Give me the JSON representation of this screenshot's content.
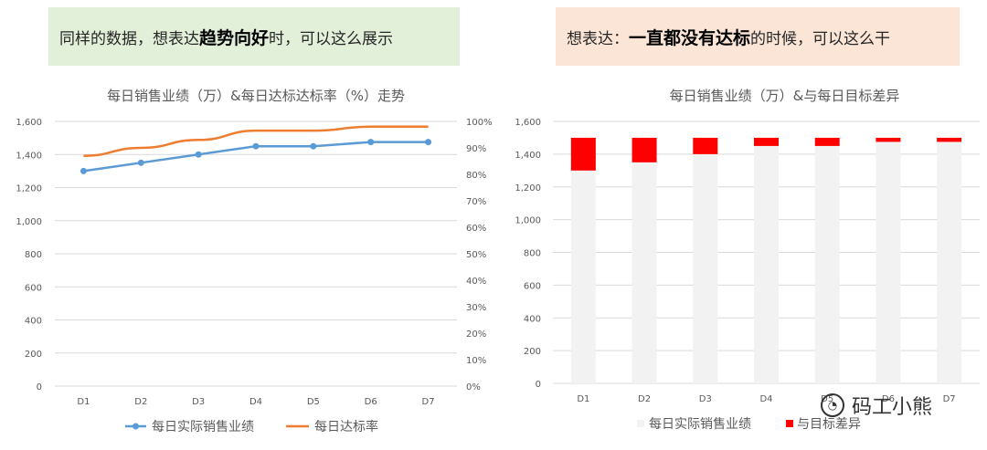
{
  "banners": {
    "left": {
      "prefix": "同样的数据，想表达",
      "emphasis": "趋势向好",
      "suffix": "时，可以这么展示"
    },
    "right": {
      "prefix": "想表达：",
      "emphasis": "一直都没有达标",
      "suffix": "的时候，可以这么干"
    }
  },
  "colors": {
    "blue": "#5b9bd5",
    "orange": "#ed7d31",
    "red": "#ff0000",
    "lightgray": "#f2f2f2",
    "grid": "#d9d9d9"
  },
  "watermark": {
    "text": "码工小熊",
    "icon": "wechat-icon"
  },
  "chart_data": [
    {
      "type": "line",
      "title": "每日销售业绩（万）&每日达标达标率（%）走势",
      "categories": [
        "D1",
        "D2",
        "D3",
        "D4",
        "D5",
        "D6",
        "D7"
      ],
      "series": [
        {
          "name": "每日实际销售业绩",
          "axis": "left",
          "values": [
            1300,
            1350,
            1400,
            1450,
            1450,
            1475,
            1475
          ]
        },
        {
          "name": "每日达标率",
          "axis": "right",
          "values": [
            87,
            90,
            93,
            96.5,
            96.5,
            98,
            98
          ]
        }
      ],
      "ylim": [
        0,
        1600
      ],
      "y_ticks": [
        "0",
        "200",
        "400",
        "600",
        "800",
        "1,000",
        "1,200",
        "1,400",
        "1,600"
      ],
      "y2lim": [
        0,
        100
      ],
      "y2_ticks": [
        "0%",
        "10%",
        "20%",
        "30%",
        "40%",
        "50%",
        "60%",
        "70%",
        "80%",
        "90%",
        "100%"
      ],
      "grid": true,
      "legend": "bottom"
    },
    {
      "type": "bar",
      "stacked": true,
      "title": "每日销售业绩（万）&与每日目标差异",
      "categories": [
        "D1",
        "D2",
        "D3",
        "D4",
        "D5",
        "D6",
        "D7"
      ],
      "series": [
        {
          "name": "每日实际销售业绩",
          "values": [
            1300,
            1350,
            1400,
            1450,
            1450,
            1475,
            1475
          ]
        },
        {
          "name": "与目标差异",
          "values": [
            200,
            150,
            100,
            50,
            50,
            25,
            25
          ]
        }
      ],
      "ylim": [
        0,
        1600
      ],
      "y_ticks": [
        "0",
        "200",
        "400",
        "600",
        "800",
        "1,000",
        "1,200",
        "1,400",
        "1,600"
      ],
      "grid": true,
      "legend": "bottom"
    }
  ]
}
